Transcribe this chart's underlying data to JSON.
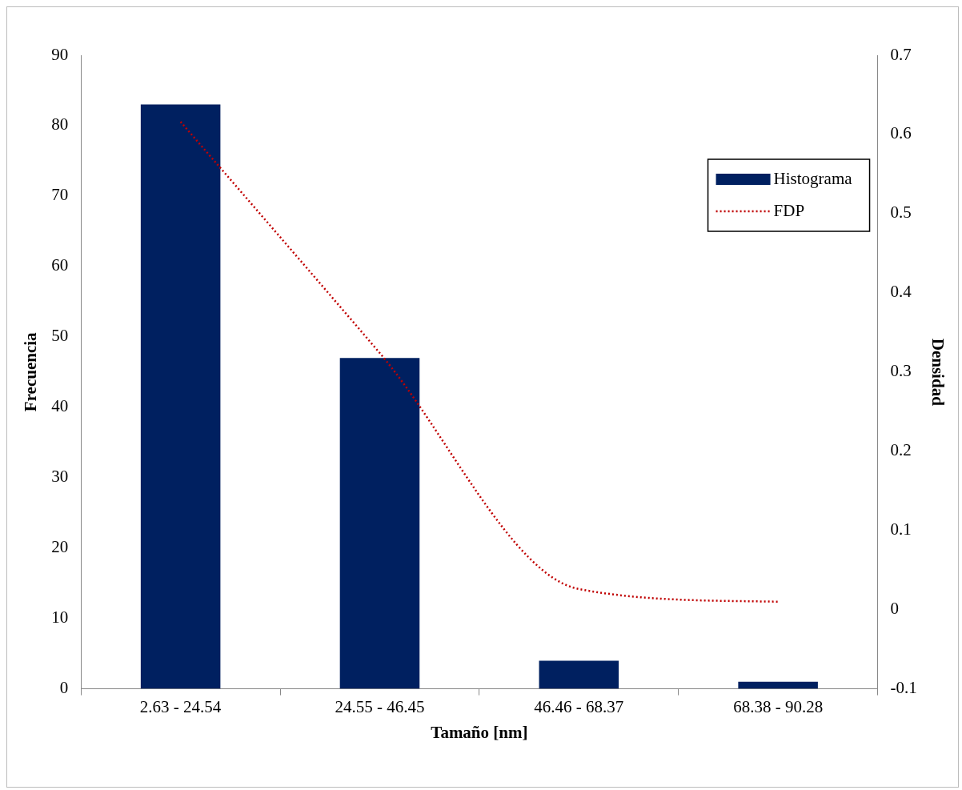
{
  "chart_data": {
    "type": "bar",
    "categories": [
      "2.63 - 24.54",
      "24.55 - 46.45",
      "46.46 - 68.37",
      "68.38 - 90.28"
    ],
    "series": [
      {
        "name": "Histograma",
        "color": "#002060",
        "values": [
          83,
          47,
          4,
          1
        ]
      },
      {
        "name": "FDP",
        "type": "line",
        "axis": "y2",
        "color": "#c00000",
        "line_style": "dotted",
        "marker": "none",
        "values": [
          0.616,
          0.324,
          0.026,
          0.01
        ]
      }
    ],
    "xlabel": "Tamaño [nm]",
    "ylabel": "Frecuencia",
    "y2label": "Densidad",
    "ylim": [
      0,
      90
    ],
    "yticks": [
      0,
      10,
      20,
      30,
      40,
      50,
      60,
      70,
      80,
      90
    ],
    "y2lim": [
      -0.1,
      0.7
    ],
    "y2ticks": [
      -0.1,
      0,
      0.1,
      0.2,
      0.3,
      0.4,
      0.5,
      0.6,
      0.7
    ],
    "grid": false,
    "legend": "top right"
  }
}
